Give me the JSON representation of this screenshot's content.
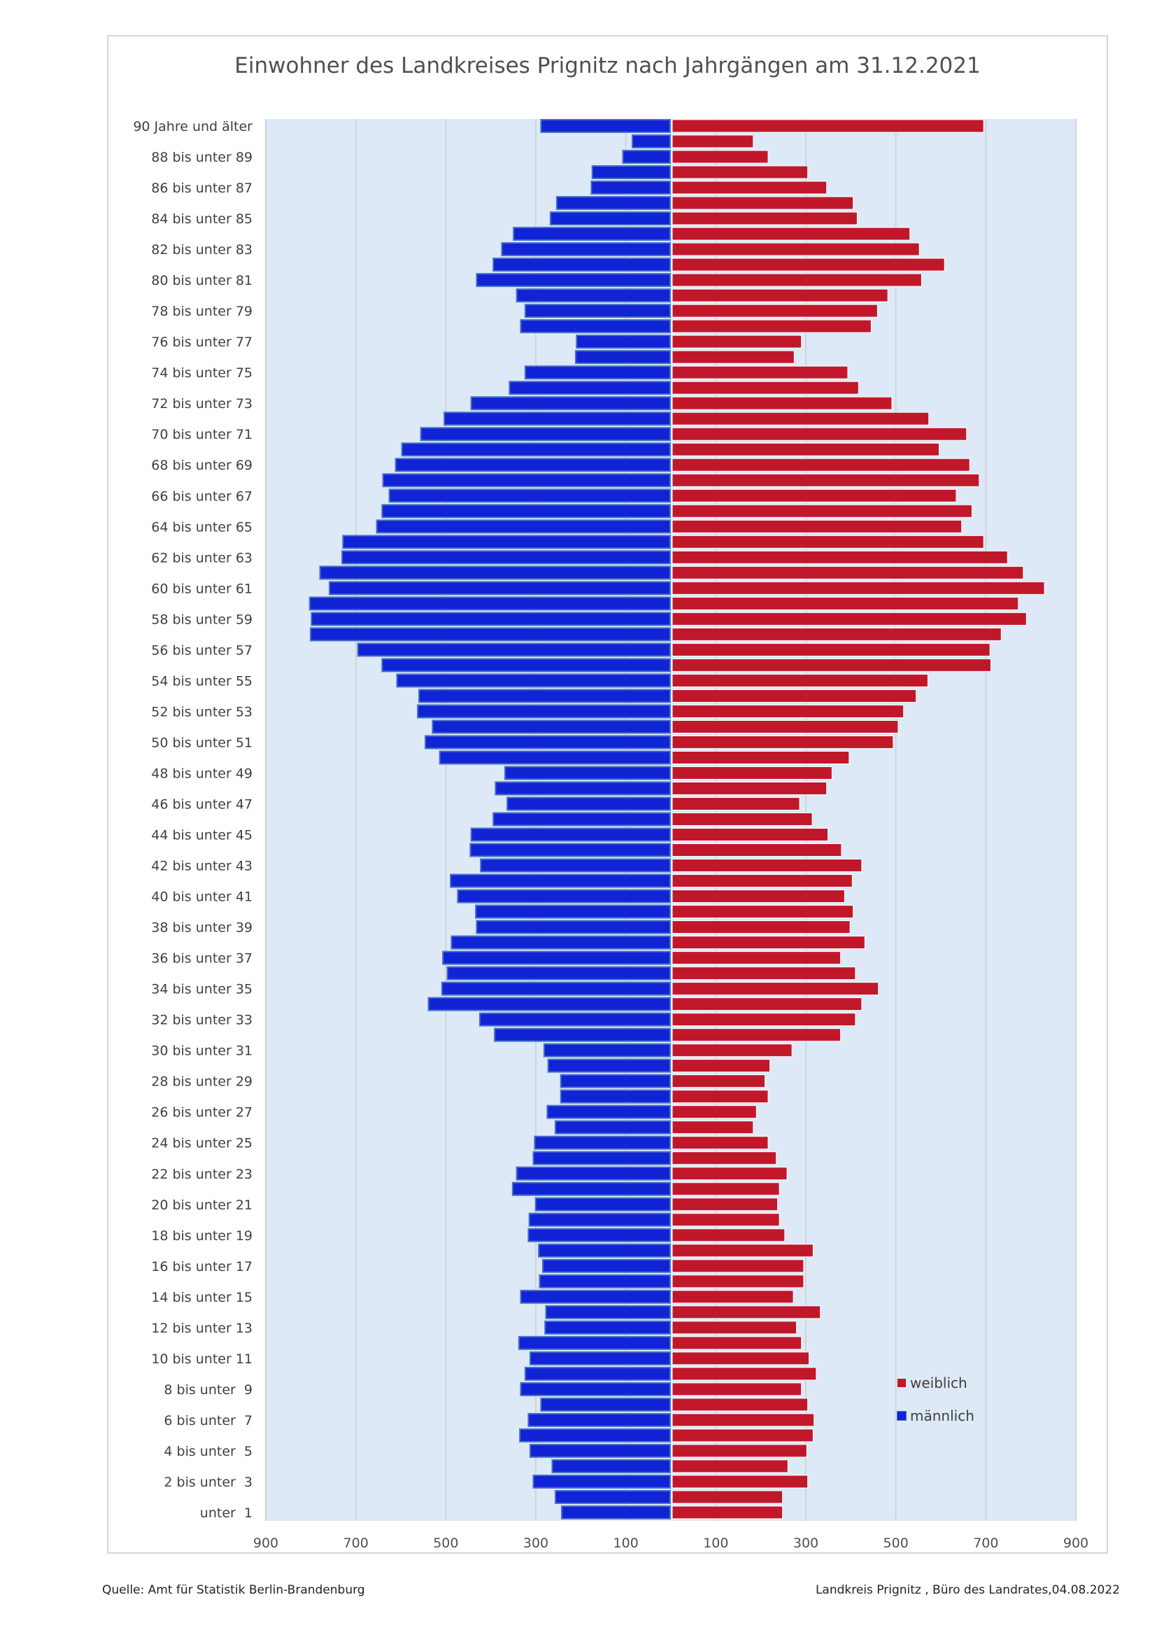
{
  "chart_data": {
    "type": "bar",
    "orientation": "horizontal-pyramid",
    "title": "Einwohner des Landkreises Prignitz nach Jahrgängen am 31.12.2021",
    "y_tick_labels": [
      "90 Jahre und älter",
      "88 bis unter 89",
      "86 bis unter 87",
      "84 bis unter 85",
      "82 bis unter 83",
      "80 bis unter 81",
      "78 bis unter 79",
      "76 bis unter 77",
      "74 bis unter 75",
      "72 bis unter 73",
      "70 bis unter 71",
      "68 bis unter 69",
      "66 bis unter 67",
      "64 bis unter 65",
      "62 bis unter 63",
      "60 bis unter 61",
      "58 bis unter 59",
      "56 bis unter 57",
      "54 bis unter 55",
      "52 bis unter 53",
      "50 bis unter 51",
      "48 bis unter 49",
      "46 bis unter 47",
      "44 bis unter 45",
      "42 bis unter 43",
      "40 bis unter 41",
      "38 bis unter 39",
      "36 bis unter 37",
      "34 bis unter 35",
      "32 bis unter 33",
      "30 bis unter 31",
      "28 bis unter 29",
      "26 bis unter 27",
      "24 bis unter 25",
      "22 bis unter 23",
      "20 bis unter 21",
      "18 bis unter 19",
      "16 bis unter 17",
      "14 bis unter 15",
      "12 bis unter 13",
      "10 bis unter 11",
      " 8 bis unter  9",
      " 6 bis unter  7",
      " 4 bis unter  5",
      " 2 bis unter  3",
      "   unter  1"
    ],
    "categories_note": "91 single-year bars from 90+ (top) down to age 0 (bottom)",
    "x_tick_labels": [
      "900",
      "700",
      "500",
      "300",
      "100",
      "100",
      "300",
      "500",
      "700",
      "900"
    ],
    "xlim": [
      -900,
      900
    ],
    "grid": true,
    "legend_position": "bottom-right",
    "series": [
      {
        "name": "männlich",
        "color": "#1024d6",
        "values": [
          287,
          84,
          105,
          173,
          175,
          252,
          266,
          348,
          374,
          393,
          430,
          341,
          322,
          332,
          208,
          210,
          322,
          357,
          442,
          502,
          554,
          596,
          610,
          638,
          624,
          640,
          652,
          727,
          729,
          778,
          757,
          801,
          797,
          799,
          694,
          640,
          607,
          558,
          561,
          528,
          544,
          512,
          367,
          388,
          362,
          393,
          442,
          444,
          421,
          488,
          472,
          432,
          430,
          486,
          505,
          495,
          507,
          537,
          423,
          390,
          280,
          271,
          243,
          243,
          273,
          255,
          301,
          304,
          341,
          350,
          299,
          313,
          315,
          292,
          283,
          290,
          332,
          276,
          278,
          336,
          311,
          322,
          332,
          287,
          315,
          334,
          311,
          262,
          304,
          255,
          241
        ]
      },
      {
        "name": "weiblich",
        "color": "#c0182a",
        "values": [
          692,
          180,
          213,
          301,
          343,
          402,
          411,
          528,
          549,
          605,
          554,
          479,
          456,
          442,
          287,
          271,
          390,
          414,
          488,
          570,
          654,
          593,
          661,
          682,
          631,
          666,
          643,
          692,
          745,
          780,
          827,
          769,
          787,
          731,
          706,
          708,
          568,
          542,
          514,
          502,
          491,
          393,
          355,
          343,
          283,
          311,
          346,
          376,
          421,
          400,
          383,
          402,
          395,
          428,
          374,
          407,
          458,
          421,
          407,
          374,
          266,
          217,
          206,
          213,
          187,
          180,
          213,
          231,
          255,
          238,
          234,
          238,
          250,
          313,
          292,
          292,
          269,
          329,
          276,
          287,
          304,
          320,
          287,
          301,
          315,
          313,
          299,
          257,
          301,
          245,
          245
        ]
      }
    ]
  },
  "legend": {
    "female": "weiblich",
    "male": "männlich"
  },
  "footer": {
    "source": "Quelle: Amt für Statistik Berlin-Brandenburg",
    "credit": "Landkreis Prignitz , Büro des Landrates,04.08.2022"
  }
}
